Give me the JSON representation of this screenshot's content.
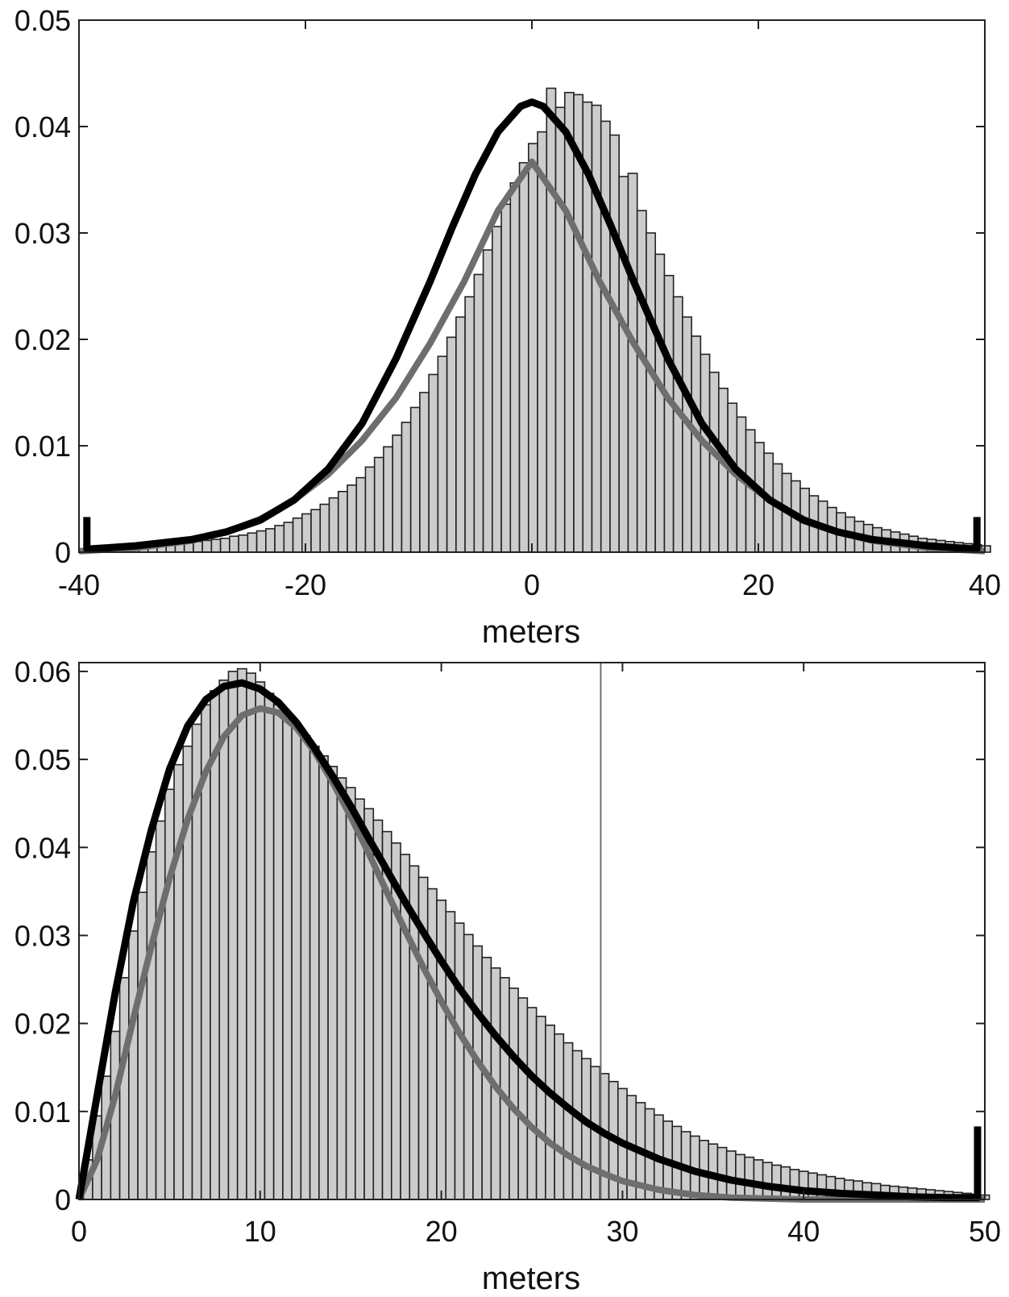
{
  "chart_data": [
    {
      "type": "bar",
      "subtype": "histogram-with-density-curves",
      "title": "",
      "xlabel": "meters",
      "ylabel": "",
      "xlim": [
        -40,
        40
      ],
      "ylim": [
        0,
        0.05
      ],
      "xticks": [
        -40,
        -20,
        0,
        20,
        40
      ],
      "yticks": [
        0,
        0.01,
        0.02,
        0.03,
        0.04,
        0.05
      ],
      "xtick_labels": [
        "-40",
        "-20",
        "0",
        "20",
        "40"
      ],
      "ytick_labels": [
        "0",
        "0.01",
        "0.02",
        "0.03",
        "0.04",
        "0.05"
      ],
      "grid": false,
      "legend": "none",
      "histogram": {
        "bin_start": -39.5,
        "bin_width": 0.8,
        "values": [
          0.0003,
          0.0003,
          0.0003,
          0.0004,
          0.0004,
          0.0005,
          0.0005,
          0.0006,
          0.0006,
          0.0007,
          0.0008,
          0.0009,
          0.001,
          0.0011,
          0.0012,
          0.0013,
          0.0015,
          0.0016,
          0.0018,
          0.002,
          0.0022,
          0.0025,
          0.0028,
          0.0032,
          0.0036,
          0.004,
          0.0045,
          0.0051,
          0.0057,
          0.0063,
          0.007,
          0.008,
          0.0089,
          0.0099,
          0.011,
          0.0122,
          0.0136,
          0.015,
          0.0167,
          0.0184,
          0.0202,
          0.0221,
          0.024,
          0.0261,
          0.0284,
          0.0306,
          0.0327,
          0.0347,
          0.0366,
          0.0384,
          0.0395,
          0.0436,
          0.0418,
          0.0432,
          0.043,
          0.0423,
          0.042,
          0.0405,
          0.0392,
          0.0353,
          0.0356,
          0.0321,
          0.03,
          0.028,
          0.026,
          0.024,
          0.0221,
          0.0203,
          0.0186,
          0.0169,
          0.0154,
          0.014,
          0.0127,
          0.0115,
          0.0103,
          0.0093,
          0.0083,
          0.0074,
          0.0067,
          0.006,
          0.0053,
          0.0048,
          0.0042,
          0.0037,
          0.0033,
          0.0029,
          0.0026,
          0.0023,
          0.0021,
          0.0019,
          0.0017,
          0.0015,
          0.0013,
          0.0012,
          0.0011,
          0.001,
          0.0009,
          0.0008,
          0.0007,
          0.0006
        ]
      },
      "series": [
        {
          "color": "#000000",
          "x": [
            -39.3,
            -39.3,
            -39,
            -35,
            -30,
            -27,
            -24,
            -21,
            -18,
            -15,
            -12,
            -9,
            -7,
            -5,
            -3,
            -1,
            0,
            1,
            3,
            5,
            7,
            9,
            12,
            15,
            18,
            21,
            24,
            27,
            30,
            35,
            39,
            39.3,
            39.3
          ],
          "values": [
            0.0033,
            0.0003,
            0.0003,
            0.0006,
            0.0012,
            0.0019,
            0.003,
            0.0049,
            0.0078,
            0.0121,
            0.0182,
            0.0254,
            0.0306,
            0.0355,
            0.0395,
            0.0419,
            0.0423,
            0.0419,
            0.0395,
            0.0355,
            0.0306,
            0.0254,
            0.0182,
            0.0121,
            0.0078,
            0.0049,
            0.003,
            0.0019,
            0.0012,
            0.0006,
            0.0003,
            0.0003,
            0.0033
          ]
        },
        {
          "color": "#6e6e6e",
          "x": [
            -40,
            -35,
            -30,
            -27,
            -24,
            -21,
            -18,
            -15,
            -12,
            -9,
            -6,
            -3,
            0,
            3,
            6,
            9,
            12,
            15,
            18,
            21,
            24,
            27,
            30,
            35,
            40
          ],
          "values": [
            0.0001,
            0.0004,
            0.0011,
            0.0019,
            0.0031,
            0.0049,
            0.0073,
            0.0105,
            0.0145,
            0.0196,
            0.0254,
            0.0321,
            0.0367,
            0.0321,
            0.0254,
            0.0196,
            0.0145,
            0.0105,
            0.0073,
            0.0049,
            0.0031,
            0.0019,
            0.0011,
            0.0004,
            0.0001
          ]
        }
      ]
    },
    {
      "type": "bar",
      "subtype": "histogram-with-density-curves",
      "title": "",
      "xlabel": "meters",
      "ylabel": "",
      "xlim": [
        0,
        50
      ],
      "ylim": [
        0,
        0.061
      ],
      "xticks": [
        0,
        10,
        20,
        30,
        40,
        50
      ],
      "yticks": [
        0,
        0.01,
        0.02,
        0.03,
        0.04,
        0.05,
        0.06
      ],
      "xtick_labels": [
        "0",
        "10",
        "20",
        "30",
        "40",
        "50"
      ],
      "ytick_labels": [
        "0",
        "0.01",
        "0.02",
        "0.03",
        "0.04",
        "0.05",
        "0.06"
      ],
      "grid": false,
      "legend": "none",
      "vertical_line_x": 28.8,
      "histogram": {
        "bin_start": 0.25,
        "bin_width": 0.5,
        "values": [
          0.0045,
          0.0095,
          0.014,
          0.0191,
          0.0252,
          0.0305,
          0.0349,
          0.0395,
          0.043,
          0.0466,
          0.0494,
          0.0515,
          0.054,
          0.0562,
          0.0578,
          0.059,
          0.06,
          0.0603,
          0.0598,
          0.0588,
          0.0575,
          0.0562,
          0.055,
          0.0538,
          0.0527,
          0.0515,
          0.0504,
          0.0492,
          0.0479,
          0.0468,
          0.0455,
          0.0444,
          0.0431,
          0.0418,
          0.0405,
          0.0392,
          0.0379,
          0.0366,
          0.0353,
          0.034,
          0.0327,
          0.0314,
          0.0301,
          0.0288,
          0.0275,
          0.0263,
          0.0252,
          0.024,
          0.0229,
          0.0218,
          0.0208,
          0.0198,
          0.0188,
          0.0178,
          0.0169,
          0.016,
          0.0151,
          0.0143,
          0.0134,
          0.0126,
          0.0118,
          0.011,
          0.0103,
          0.0096,
          0.0089,
          0.0083,
          0.0077,
          0.0072,
          0.0067,
          0.0063,
          0.0059,
          0.0055,
          0.0051,
          0.0048,
          0.0045,
          0.0042,
          0.0039,
          0.0037,
          0.0034,
          0.0032,
          0.003,
          0.0028,
          0.0026,
          0.0024,
          0.0022,
          0.0021,
          0.0019,
          0.0018,
          0.0016,
          0.0015,
          0.0014,
          0.0013,
          0.0012,
          0.0011,
          0.001,
          0.0009,
          0.0008,
          0.0007,
          0.0006,
          0.0005
        ]
      },
      "series": [
        {
          "color": "#000000",
          "x": [
            0,
            1,
            2,
            3,
            4,
            5,
            6,
            7,
            8,
            9,
            10,
            11,
            12,
            13,
            14,
            15,
            16,
            17,
            18,
            19,
            20,
            21,
            22,
            23,
            24,
            25,
            26,
            27,
            28,
            29,
            30,
            32,
            34,
            36,
            38,
            40,
            42,
            44,
            46,
            48,
            49.6,
            49.6
          ],
          "values": [
            0,
            0.0118,
            0.0235,
            0.0338,
            0.042,
            0.0489,
            0.0538,
            0.0568,
            0.0583,
            0.0587,
            0.058,
            0.0565,
            0.0542,
            0.0513,
            0.0481,
            0.0447,
            0.041,
            0.0374,
            0.0338,
            0.0304,
            0.0271,
            0.024,
            0.0212,
            0.0186,
            0.0162,
            0.014,
            0.0121,
            0.0104,
            0.0088,
            0.0075,
            0.0064,
            0.0046,
            0.0032,
            0.0022,
            0.0015,
            0.001,
            0.0007,
            0.0005,
            0.0003,
            0.0002,
            0.0002,
            0.0083
          ]
        },
        {
          "color": "#6e6e6e",
          "x": [
            0,
            1,
            2,
            3,
            4,
            5,
            6,
            7,
            8,
            9,
            10,
            11,
            12,
            13,
            14,
            15,
            16,
            17,
            18,
            19,
            20,
            21,
            22,
            23,
            24,
            25,
            26,
            27,
            28,
            29,
            30,
            32,
            34,
            36,
            38,
            40,
            43,
            46,
            50
          ],
          "values": [
            0,
            0.0045,
            0.0118,
            0.0205,
            0.0288,
            0.0365,
            0.0432,
            0.0486,
            0.0526,
            0.055,
            0.0558,
            0.0553,
            0.0536,
            0.0509,
            0.0474,
            0.0435,
            0.0393,
            0.0349,
            0.0306,
            0.0264,
            0.0225,
            0.0189,
            0.0157,
            0.0128,
            0.0103,
            0.0082,
            0.0064,
            0.005,
            0.0038,
            0.0029,
            0.0021,
            0.0011,
            0.0005,
            0.0002,
            0.0001,
            0,
            0,
            0,
            0
          ]
        }
      ]
    }
  ]
}
